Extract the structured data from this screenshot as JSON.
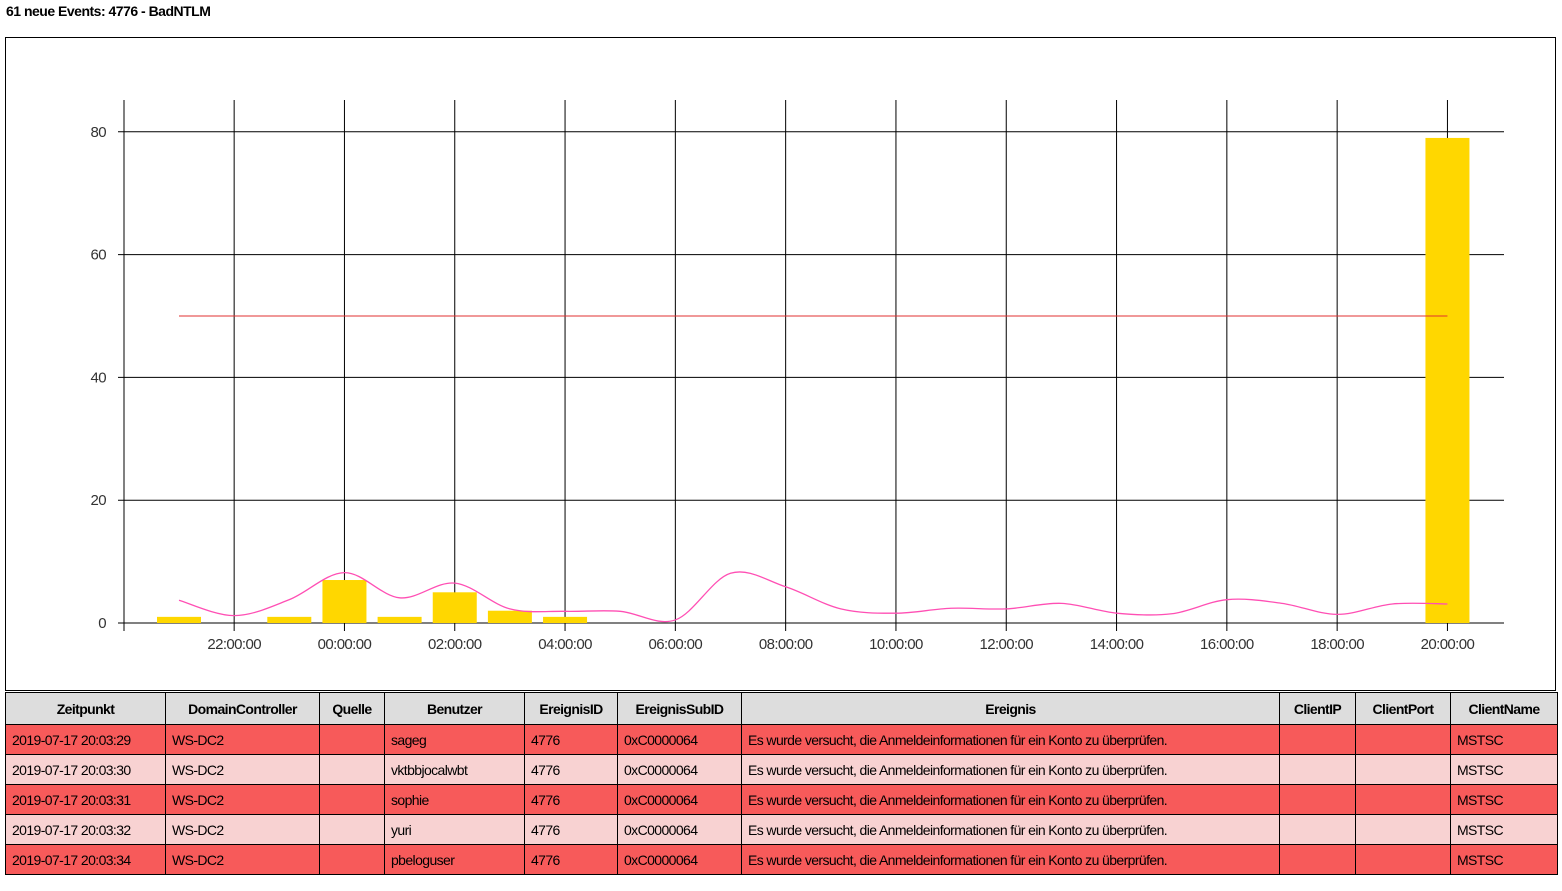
{
  "header": {
    "title": "61 neue Events: 4776 - BadNTLM"
  },
  "colors": {
    "bar": "#FFD700",
    "threshold_line": "#e03030",
    "trend_line": "#ff4fb4",
    "row_dark": "#f75a5a",
    "row_light": "#f8d2d2",
    "header_bg": "#dddddd"
  },
  "chart_data": {
    "type": "bar",
    "y_ticks": [
      "0",
      "20",
      "40",
      "60",
      "80"
    ],
    "ylim": [
      0,
      85
    ],
    "x_tick_labels": [
      "22:00:00",
      "00:00:00",
      "02:00:00",
      "04:00:00",
      "06:00:00",
      "08:00:00",
      "10:00:00",
      "12:00:00",
      "14:00:00",
      "16:00:00",
      "18:00:00",
      "20:00:00"
    ],
    "grid": true,
    "bars": [
      {
        "hour": "21:00",
        "value": 1
      },
      {
        "hour": "23:00",
        "value": 1
      },
      {
        "hour": "00:00",
        "value": 7
      },
      {
        "hour": "01:00",
        "value": 1
      },
      {
        "hour": "02:00",
        "value": 5
      },
      {
        "hour": "03:00",
        "value": 2
      },
      {
        "hour": "04:00",
        "value": 1
      },
      {
        "hour": "20:00",
        "value": 79
      }
    ],
    "threshold": 50,
    "trend": [
      {
        "hour": "21:00",
        "value": 3.7
      },
      {
        "hour": "22:00",
        "value": 1.2
      },
      {
        "hour": "23:00",
        "value": 3.8
      },
      {
        "hour": "00:00",
        "value": 8.2
      },
      {
        "hour": "01:00",
        "value": 4.1
      },
      {
        "hour": "02:00",
        "value": 6.5
      },
      {
        "hour": "03:00",
        "value": 2.3
      },
      {
        "hour": "04:00",
        "value": 1.9
      },
      {
        "hour": "05:00",
        "value": 1.9
      },
      {
        "hour": "06:00",
        "value": 0.5
      },
      {
        "hour": "07:00",
        "value": 8.1
      },
      {
        "hour": "08:00",
        "value": 5.9
      },
      {
        "hour": "09:00",
        "value": 2.3
      },
      {
        "hour": "10:00",
        "value": 1.6
      },
      {
        "hour": "11:00",
        "value": 2.4
      },
      {
        "hour": "12:00",
        "value": 2.3
      },
      {
        "hour": "13:00",
        "value": 3.2
      },
      {
        "hour": "14:00",
        "value": 1.6
      },
      {
        "hour": "15:00",
        "value": 1.5
      },
      {
        "hour": "16:00",
        "value": 3.8
      },
      {
        "hour": "17:00",
        "value": 3.2
      },
      {
        "hour": "18:00",
        "value": 1.4
      },
      {
        "hour": "19:00",
        "value": 3.1
      },
      {
        "hour": "20:00",
        "value": 3.1
      }
    ]
  },
  "table": {
    "columns": [
      "Zeitpunkt",
      "DomainController",
      "Quelle",
      "Benutzer",
      "EreignisID",
      "EreignisSubID",
      "Ereignis",
      "ClientIP",
      "ClientPort",
      "ClientName"
    ],
    "rows": [
      [
        "2019-07-17 20:03:29",
        "WS-DC2",
        "",
        "sageg",
        "4776",
        "0xC0000064",
        "Es wurde versucht, die Anmeldeinformationen für ein Konto zu überprüfen.",
        "",
        "",
        "MSTSC"
      ],
      [
        "2019-07-17 20:03:30",
        "WS-DC2",
        "",
        "vktbbjocalwbt",
        "4776",
        "0xC0000064",
        "Es wurde versucht, die Anmeldeinformationen für ein Konto zu überprüfen.",
        "",
        "",
        "MSTSC"
      ],
      [
        "2019-07-17 20:03:31",
        "WS-DC2",
        "",
        "sophie",
        "4776",
        "0xC0000064",
        "Es wurde versucht, die Anmeldeinformationen für ein Konto zu überprüfen.",
        "",
        "",
        "MSTSC"
      ],
      [
        "2019-07-17 20:03:32",
        "WS-DC2",
        "",
        "yuri",
        "4776",
        "0xC0000064",
        "Es wurde versucht, die Anmeldeinformationen für ein Konto zu überprüfen.",
        "",
        "",
        "MSTSC"
      ],
      [
        "2019-07-17 20:03:34",
        "WS-DC2",
        "",
        "pbeloguser",
        "4776",
        "0xC0000064",
        "Es wurde versucht, die Anmeldeinformationen für ein Konto zu überprüfen.",
        "",
        "",
        "MSTSC"
      ]
    ]
  }
}
